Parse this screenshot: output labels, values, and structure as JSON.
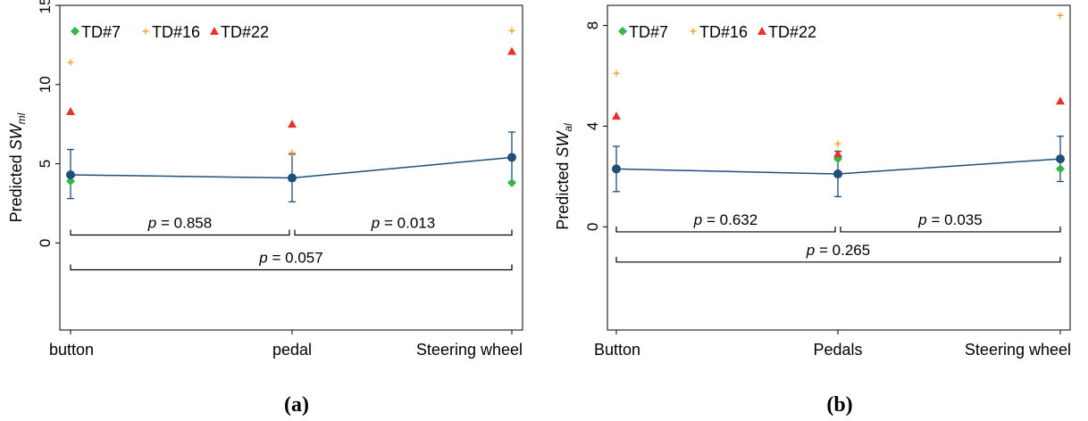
{
  "chart_data": [
    {
      "type": "scatter",
      "panel_label": "(a)",
      "ylabel_prefix": "Predicted ",
      "ylabel_symbol": "SW",
      "ylabel_subscript": "ml",
      "categories": [
        "button",
        "pedal",
        "Steering wheel"
      ],
      "ylim": [
        -5.5,
        15
      ],
      "yticks": [
        0,
        5,
        10,
        15
      ],
      "grid": false,
      "legend_position": "top-left",
      "legend": [
        {
          "label": "TD#7",
          "marker": "diamond",
          "color": "#2fb84a"
        },
        {
          "label": "TD#16",
          "marker": "plus",
          "color": "#f39c12"
        },
        {
          "label": "TD#22",
          "marker": "triangle",
          "color": "#e5322d"
        }
      ],
      "mean_series": {
        "color": "#1f4e79",
        "values": [
          4.3,
          4.1,
          5.4
        ],
        "ci_low": [
          2.8,
          2.6,
          3.8
        ],
        "ci_high": [
          5.9,
          5.6,
          7.0
        ]
      },
      "individuals": [
        {
          "name": "TD#7",
          "marker": "diamond",
          "color": "#2fb84a",
          "values": [
            3.9,
            4.1,
            3.8
          ]
        },
        {
          "name": "TD#16",
          "marker": "plus",
          "color": "#f39c12",
          "values": [
            11.4,
            5.7,
            13.4
          ]
        },
        {
          "name": "TD#22",
          "marker": "triangle",
          "color": "#e5322d",
          "values": [
            8.3,
            7.5,
            12.1
          ]
        }
      ],
      "comparisons": [
        {
          "from": 0,
          "to": 1,
          "p_symbol": "p",
          "p_value": " = 0.858",
          "y": 0.5
        },
        {
          "from": 1,
          "to": 2,
          "p_symbol": "p",
          "p_value": " = 0.013",
          "y": 0.5
        },
        {
          "from": 0,
          "to": 2,
          "p_symbol": "p",
          "p_value": " = 0.057",
          "y": -1.7
        }
      ]
    },
    {
      "type": "scatter",
      "panel_label": "(b)",
      "ylabel_prefix": "Predicted ",
      "ylabel_symbol": "SW",
      "ylabel_subscript": "al",
      "categories": [
        "Button",
        "Pedals",
        "Steering wheel"
      ],
      "ylim": [
        -4.1,
        8.8
      ],
      "yticks": [
        0,
        4,
        8
      ],
      "grid": false,
      "legend_position": "top-left",
      "legend": [
        {
          "label": "TD#7",
          "marker": "diamond",
          "color": "#2fb84a"
        },
        {
          "label": "TD#16",
          "marker": "plus",
          "color": "#f39c12"
        },
        {
          "label": "TD#22",
          "marker": "triangle",
          "color": "#e5322d"
        }
      ],
      "mean_series": {
        "color": "#1f4e79",
        "values": [
          2.3,
          2.1,
          2.7
        ],
        "ci_low": [
          1.4,
          1.2,
          1.8
        ],
        "ci_high": [
          3.2,
          3.0,
          3.6
        ]
      },
      "individuals": [
        {
          "name": "TD#7",
          "marker": "diamond",
          "color": "#2fb84a",
          "values": [
            2.3,
            2.7,
            2.3
          ]
        },
        {
          "name": "TD#16",
          "marker": "plus",
          "color": "#f39c12",
          "values": [
            6.1,
            3.3,
            8.4
          ]
        },
        {
          "name": "TD#22",
          "marker": "triangle",
          "color": "#e5322d",
          "values": [
            4.4,
            2.9,
            5.0
          ]
        }
      ],
      "comparisons": [
        {
          "from": 0,
          "to": 1,
          "p_symbol": "p",
          "p_value": " = 0.632",
          "y": -0.2
        },
        {
          "from": 1,
          "to": 2,
          "p_symbol": "p",
          "p_value": " = 0.035",
          "y": -0.2
        },
        {
          "from": 0,
          "to": 2,
          "p_symbol": "p",
          "p_value": " = 0.265",
          "y": -1.4
        }
      ]
    }
  ]
}
